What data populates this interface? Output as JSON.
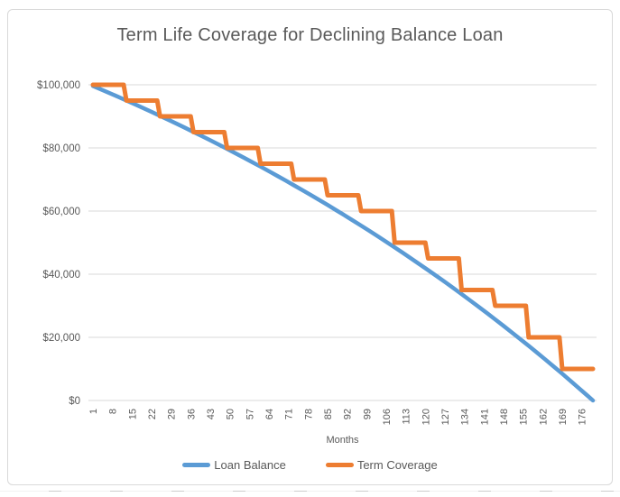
{
  "chart_data": {
    "type": "line",
    "title": "Term Life Coverage for Declining Balance Loan",
    "xlabel": "Months",
    "ylabel": "",
    "xlim": [
      1,
      180
    ],
    "ylim": [
      0,
      100000
    ],
    "grid": true,
    "legend_position": "bottom",
    "x_ticks": [
      1,
      8,
      15,
      22,
      29,
      36,
      43,
      50,
      57,
      64,
      71,
      78,
      85,
      92,
      99,
      106,
      113,
      120,
      127,
      134,
      141,
      148,
      155,
      162,
      169,
      176
    ],
    "y_ticks": [
      {
        "value": 0,
        "label": "$0"
      },
      {
        "value": 20000,
        "label": "$20,000"
      },
      {
        "value": 40000,
        "label": "$40,000"
      },
      {
        "value": 60000,
        "label": "$60,000"
      },
      {
        "value": 80000,
        "label": "$80,000"
      },
      {
        "value": 100000,
        "label": "$100,000"
      }
    ],
    "series": [
      {
        "name": "Loan Balance",
        "color": "#5B9BD5",
        "style": "smooth",
        "points": [
          [
            1,
            99626
          ],
          [
            4,
            98494
          ],
          [
            7,
            97348
          ],
          [
            10,
            96188
          ],
          [
            13,
            95013
          ],
          [
            16,
            93823
          ],
          [
            19,
            92619
          ],
          [
            22,
            91399
          ],
          [
            25,
            90164
          ],
          [
            28,
            88913
          ],
          [
            31,
            87647
          ],
          [
            34,
            86365
          ],
          [
            37,
            85066
          ],
          [
            40,
            83752
          ],
          [
            43,
            82421
          ],
          [
            46,
            81073
          ],
          [
            49,
            79708
          ],
          [
            52,
            78326
          ],
          [
            55,
            76927
          ],
          [
            58,
            75510
          ],
          [
            61,
            74076
          ],
          [
            64,
            72623
          ],
          [
            67,
            71153
          ],
          [
            70,
            69663
          ],
          [
            73,
            68155
          ],
          [
            76,
            66629
          ],
          [
            79,
            65083
          ],
          [
            82,
            63517
          ],
          [
            85,
            61932
          ],
          [
            88,
            60327
          ],
          [
            91,
            58702
          ],
          [
            94,
            57057
          ],
          [
            97,
            55390
          ],
          [
            100,
            53703
          ],
          [
            103,
            51995
          ],
          [
            106,
            50265
          ],
          [
            109,
            48513
          ],
          [
            112,
            46740
          ],
          [
            115,
            44944
          ],
          [
            118,
            43126
          ],
          [
            121,
            41285
          ],
          [
            124,
            39421
          ],
          [
            127,
            37533
          ],
          [
            130,
            35622
          ],
          [
            133,
            33687
          ],
          [
            136,
            31727
          ],
          [
            139,
            29743
          ],
          [
            142,
            27733
          ],
          [
            145,
            25699
          ],
          [
            148,
            23639
          ],
          [
            151,
            21553
          ],
          [
            154,
            19442
          ],
          [
            157,
            17304
          ],
          [
            160,
            15139
          ],
          [
            163,
            12947
          ],
          [
            166,
            10727
          ],
          [
            169,
            8479
          ],
          [
            172,
            6203
          ],
          [
            175,
            3898
          ],
          [
            178,
            1565
          ],
          [
            180,
            0
          ]
        ]
      },
      {
        "name": "Term Coverage",
        "color": "#ED7D31",
        "style": "step",
        "months_per_step": 12,
        "levels": [
          100000,
          95000,
          90000,
          85000,
          80000,
          75000,
          70000,
          65000,
          60000,
          50000,
          45000,
          35000,
          30000,
          20000,
          10000
        ]
      }
    ]
  },
  "colors": {
    "grid": "#D9D9D9",
    "axis_text": "#595959",
    "title_text": "#595959",
    "frame_border": "#D9D9D9",
    "background": "#FFFFFF"
  }
}
